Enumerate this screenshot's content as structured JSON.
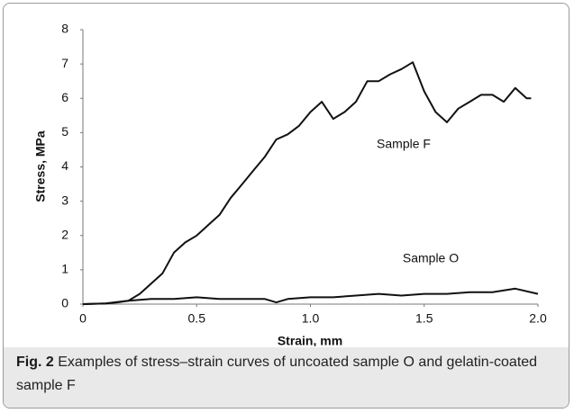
{
  "chart_data": {
    "type": "line",
    "xlabel": "Strain, mm",
    "ylabel": "Stress, MPa",
    "xlim": [
      0,
      2
    ],
    "xticks": [
      0,
      0.5,
      {
        "value": 1,
        "label": "1.0"
      },
      1.5,
      {
        "value": 2,
        "label": "2.0"
      }
    ],
    "ylim": [
      0,
      8
    ],
    "yticks": [
      0,
      1,
      2,
      3,
      4,
      5,
      6,
      7,
      8
    ],
    "grid": false,
    "annotations": [
      "Sample F",
      "Sample O"
    ],
    "series": [
      {
        "name": "Sample F",
        "color": "#111111",
        "x": [
          0,
          0.1,
          0.15,
          0.2,
          0.25,
          0.3,
          0.35,
          0.4,
          0.45,
          0.5,
          0.55,
          0.6,
          0.65,
          0.7,
          0.75,
          0.8,
          0.85,
          0.9,
          0.95,
          1.0,
          1.05,
          1.1,
          1.15,
          1.2,
          1.25,
          1.3,
          1.35,
          1.4,
          1.45,
          1.5,
          1.55,
          1.6,
          1.65,
          1.7,
          1.75,
          1.8,
          1.85,
          1.9,
          1.95,
          1.97
        ],
        "values": [
          0,
          0.02,
          0.05,
          0.1,
          0.3,
          0.6,
          0.9,
          1.5,
          1.8,
          2.0,
          2.3,
          2.6,
          3.1,
          3.5,
          3.9,
          4.3,
          4.8,
          4.95,
          5.2,
          5.6,
          5.9,
          5.4,
          5.6,
          5.9,
          6.5,
          6.5,
          6.7,
          6.85,
          7.05,
          6.2,
          5.6,
          5.3,
          5.7,
          5.9,
          6.1,
          6.1,
          5.9,
          6.3,
          6.0,
          6.0
        ]
      },
      {
        "name": "Sample O",
        "color": "#111111",
        "x": [
          0,
          0.1,
          0.2,
          0.3,
          0.4,
          0.5,
          0.6,
          0.7,
          0.8,
          0.85,
          0.9,
          1.0,
          1.1,
          1.2,
          1.3,
          1.4,
          1.5,
          1.6,
          1.7,
          1.8,
          1.9,
          2.0
        ],
        "values": [
          0,
          0.02,
          0.1,
          0.15,
          0.15,
          0.2,
          0.15,
          0.15,
          0.15,
          0.05,
          0.15,
          0.2,
          0.2,
          0.25,
          0.3,
          0.25,
          0.3,
          0.3,
          0.35,
          0.35,
          0.45,
          0.3
        ]
      }
    ]
  },
  "caption": {
    "label": "Fig. 2",
    "text": "Examples of stress–strain curves of uncoated sample O and gelatin-coated sample F"
  }
}
